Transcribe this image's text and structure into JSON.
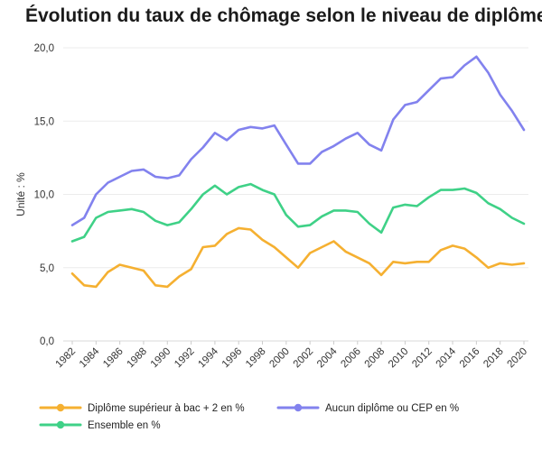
{
  "chart_data": {
    "type": "line",
    "title": "Évolution du taux de chômage selon le niveau de diplôme",
    "ylabel": "Unité : %",
    "xlabel": "",
    "ylim": [
      0,
      20
    ],
    "yticks": [
      "0,0",
      "5,0",
      "10,0",
      "15,0",
      "20,0"
    ],
    "ytick_values": [
      0,
      5,
      10,
      15,
      20
    ],
    "grid": true,
    "legend_position": "bottom",
    "x": [
      1982,
      1983,
      1984,
      1985,
      1986,
      1987,
      1988,
      1989,
      1990,
      1991,
      1992,
      1993,
      1994,
      1995,
      1996,
      1997,
      1998,
      1999,
      2000,
      2001,
      2002,
      2003,
      2004,
      2005,
      2006,
      2007,
      2008,
      2009,
      2010,
      2011,
      2012,
      2013,
      2014,
      2015,
      2016,
      2017,
      2018,
      2019,
      2020
    ],
    "xticks": [
      "1982",
      "1984",
      "1986",
      "1988",
      "1990",
      "1992",
      "1994",
      "1996",
      "1998",
      "2000",
      "2002",
      "2004",
      "2006",
      "2008",
      "2010",
      "2012",
      "2014",
      "2016",
      "2018",
      "2020"
    ],
    "series": [
      {
        "name": "Diplôme supérieur à bac + 2 en %",
        "color": "#f5b031",
        "values": [
          4.6,
          3.8,
          3.7,
          4.7,
          5.2,
          5.0,
          4.8,
          3.8,
          3.7,
          4.4,
          4.9,
          6.4,
          6.5,
          7.3,
          7.7,
          7.6,
          6.9,
          6.4,
          5.7,
          5.0,
          6.0,
          6.4,
          6.8,
          6.1,
          5.7,
          5.3,
          4.5,
          5.4,
          5.3,
          5.4,
          5.4,
          6.2,
          6.5,
          6.3,
          5.7,
          5.0,
          5.3,
          5.2,
          5.3
        ]
      },
      {
        "name": "Aucun diplôme ou CEP en %",
        "color": "#8282ee",
        "values": [
          7.9,
          8.4,
          10.0,
          10.8,
          11.2,
          11.6,
          11.7,
          11.2,
          11.1,
          11.3,
          12.4,
          13.2,
          14.2,
          13.7,
          14.4,
          14.6,
          14.5,
          14.7,
          13.4,
          12.1,
          12.1,
          12.9,
          13.3,
          13.8,
          14.2,
          13.4,
          13.0,
          15.1,
          16.1,
          16.3,
          17.1,
          17.9,
          18.0,
          18.8,
          19.4,
          18.3,
          16.8,
          15.7,
          14.4
        ]
      },
      {
        "name": "Ensemble en %",
        "color": "#3fd187",
        "values": [
          6.8,
          7.1,
          8.4,
          8.8,
          8.9,
          9.0,
          8.8,
          8.2,
          7.9,
          8.1,
          9.0,
          10.0,
          10.6,
          10.0,
          10.5,
          10.7,
          10.3,
          10.0,
          8.6,
          7.8,
          7.9,
          8.5,
          8.9,
          8.9,
          8.8,
          8.0,
          7.4,
          9.1,
          9.3,
          9.2,
          9.8,
          10.3,
          10.3,
          10.4,
          10.1,
          9.4,
          9.0,
          8.4,
          8.0
        ]
      }
    ],
    "legend_order": [
      0,
      1,
      2
    ]
  }
}
